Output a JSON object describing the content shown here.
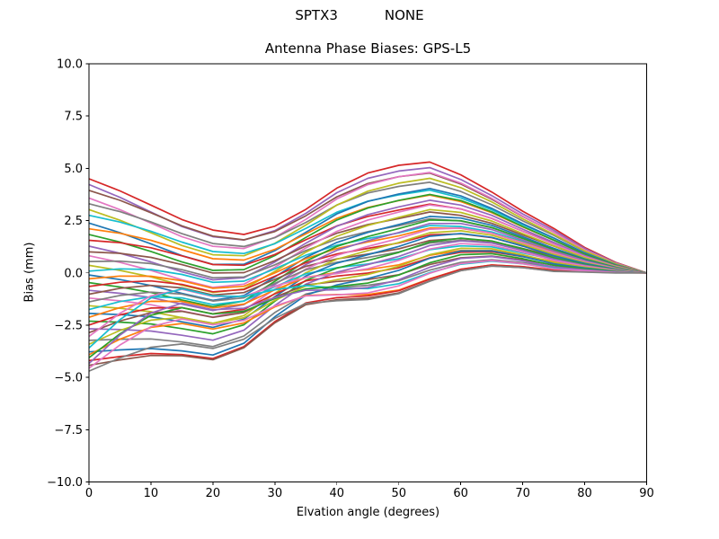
{
  "figure": {
    "suptitle_left": "SPTX3",
    "suptitle_right": "NONE",
    "title": "Antenna Phase Biases: GPS-L5"
  },
  "chart_data": {
    "type": "line",
    "suptitle": "SPTX3          NONE",
    "title": "Antenna Phase Biases: GPS-L5",
    "xlabel": "Elvation angle (degrees)",
    "ylabel": "Bias (mm)",
    "xlim": [
      0,
      90
    ],
    "ylim": [
      -10,
      10
    ],
    "grid": false,
    "legend": "none",
    "background": "#ffffff",
    "axis_color": "#000000",
    "line_width": 1.7,
    "xticks": {
      "values": [
        0,
        10,
        20,
        30,
        40,
        50,
        60,
        70,
        80,
        90
      ],
      "labels": [
        "0",
        "10",
        "20",
        "30",
        "40",
        "50",
        "60",
        "70",
        "80",
        "90"
      ]
    },
    "yticks": {
      "values": [
        10.0,
        7.5,
        5.0,
        2.5,
        0.0,
        -2.5,
        -5.0,
        -7.5,
        -10.0
      ],
      "labels": [
        "10.0",
        "7.5",
        "5.0",
        "2.5",
        "0.0",
        "−2.5",
        "−5.0",
        "−7.5",
        "−10.0"
      ]
    },
    "x": [
      0,
      5,
      10,
      15,
      20,
      25,
      30,
      35,
      40,
      45,
      50,
      55,
      60,
      65,
      70,
      75,
      80,
      85,
      90
    ],
    "n_series": 45,
    "palette_tab10": [
      "#1f77b4",
      "#ff7f0e",
      "#2ca02c",
      "#d62728",
      "#9467bd",
      "#8c564b",
      "#e377c2",
      "#7f7f7f",
      "#bcbd22",
      "#17becf"
    ],
    "envelope": {
      "upper": [
        4.5,
        3.9,
        3.2,
        2.5,
        2.0,
        1.8,
        2.2,
        3.0,
        4.0,
        4.7,
        5.05,
        5.2,
        4.6,
        3.8,
        2.9,
        2.1,
        1.2,
        0.5,
        0.0
      ],
      "lower": [
        -4.7,
        -4.2,
        -3.8,
        -3.7,
        -3.9,
        -3.4,
        -2.3,
        -1.5,
        -1.3,
        -1.2,
        -0.9,
        -0.3,
        0.2,
        0.4,
        0.3,
        0.1,
        0.05,
        0.0,
        0.0
      ]
    },
    "series_model": "values[j] = lower_anchor[j] + u*(upper_anchor[j]-lower_anchor[j]) + w1*w1_basis[j] + w2*w2_basis[j]; one bias curve per GPS satellite, all converging to 0 mm at 90 deg",
    "upper_anchor": [
      4.5,
      3.9,
      3.2,
      2.5,
      2.0,
      1.8,
      2.2,
      3.0,
      4.0,
      4.7,
      5.05,
      5.2,
      4.6,
      3.8,
      2.9,
      2.1,
      1.2,
      0.5,
      0.0
    ],
    "lower_anchor": [
      -4.7,
      -4.2,
      -3.8,
      -3.7,
      -3.9,
      -3.4,
      -2.3,
      -1.5,
      -1.3,
      -1.2,
      -0.9,
      -0.3,
      0.2,
      0.4,
      0.3,
      0.1,
      0.05,
      0.0,
      0.0
    ],
    "w1_basis": [
      0,
      0.45,
      0.8,
      1.0,
      0.95,
      0.75,
      0.45,
      0.2,
      0.05,
      0,
      0,
      0,
      0,
      0,
      0,
      0,
      0,
      0,
      0
    ],
    "w2_basis": [
      0,
      0,
      0,
      0,
      0,
      0,
      0.1,
      0.25,
      0.5,
      0.75,
      0.95,
      1.0,
      0.9,
      0.7,
      0.5,
      0.3,
      0.15,
      0.05,
      0
    ],
    "series": {
      "colors": [
        "#d62728",
        "#9467bd",
        "#8c564b",
        "#e377c2",
        "#7f7f7f",
        "#bcbd22",
        "#17becf",
        "#1f77b4",
        "#ff7f0e",
        "#2ca02c",
        "#d62728",
        "#9467bd",
        "#8c564b",
        "#e377c2",
        "#7f7f7f",
        "#bcbd22",
        "#17becf",
        "#1f77b4",
        "#ff7f0e",
        "#2ca02c",
        "#d62728",
        "#9467bd",
        "#8c564b",
        "#e377c2",
        "#7f7f7f",
        "#bcbd22",
        "#17becf",
        "#1f77b4",
        "#ff7f0e",
        "#2ca02c",
        "#d62728",
        "#9467bd",
        "#8c564b",
        "#e377c2",
        "#7f7f7f",
        "#bcbd22",
        "#17becf",
        "#1f77b4",
        "#ff7f0e",
        "#2ca02c",
        "#d62728",
        "#9467bd",
        "#8c564b",
        "#e377c2",
        "#7f7f7f"
      ],
      "u": [
        1.0,
        0.97,
        0.94,
        0.9,
        0.87,
        0.84,
        0.81,
        0.77,
        0.74,
        0.71,
        0.68,
        0.65,
        0.62,
        0.6,
        0.57,
        0.55,
        0.52,
        0.5,
        0.48,
        0.46,
        0.44,
        0.42,
        0.4,
        0.38,
        0.36,
        0.34,
        0.32,
        0.3,
        0.28,
        0.26,
        0.24,
        0.22,
        0.2,
        0.18,
        0.16,
        0.14,
        0.12,
        0.1,
        0.085,
        0.07,
        0.055,
        0.04,
        0.03,
        0.015,
        0.0
      ],
      "w1": [
        0.05,
        -0.1,
        0.12,
        -0.15,
        0.18,
        -0.2,
        0.15,
        -0.25,
        0.22,
        -0.18,
        0.3,
        -0.28,
        0.25,
        -0.35,
        0.32,
        -0.3,
        0.4,
        -0.38,
        0.35,
        -0.45,
        0.42,
        -0.4,
        0.5,
        -0.48,
        0.45,
        -0.55,
        0.52,
        -0.5,
        0.6,
        -0.58,
        0.55,
        -0.65,
        0.62,
        1.8,
        -0.6,
        0.7,
        2.2,
        -0.65,
        0.75,
        1.6,
        -0.55,
        2.0,
        -0.45,
        1.4,
        0.3
      ],
      "w2": [
        0.1,
        0.0,
        -0.1,
        0.15,
        -0.15,
        0.2,
        -0.2,
        0.1,
        -0.05,
        0.15,
        -0.15,
        0.2,
        -0.2,
        0.25,
        -0.25,
        0.3,
        -0.3,
        0.25,
        -0.2,
        0.3,
        -0.3,
        0.35,
        -0.35,
        0.3,
        -0.25,
        0.35,
        -0.35,
        0.4,
        -0.4,
        0.35,
        -0.3,
        0.4,
        -0.4,
        0.45,
        -0.45,
        0.4,
        -0.35,
        0.45,
        -0.45,
        0.4,
        -0.3,
        0.35,
        -0.25,
        0.2,
        -0.1
      ]
    }
  }
}
